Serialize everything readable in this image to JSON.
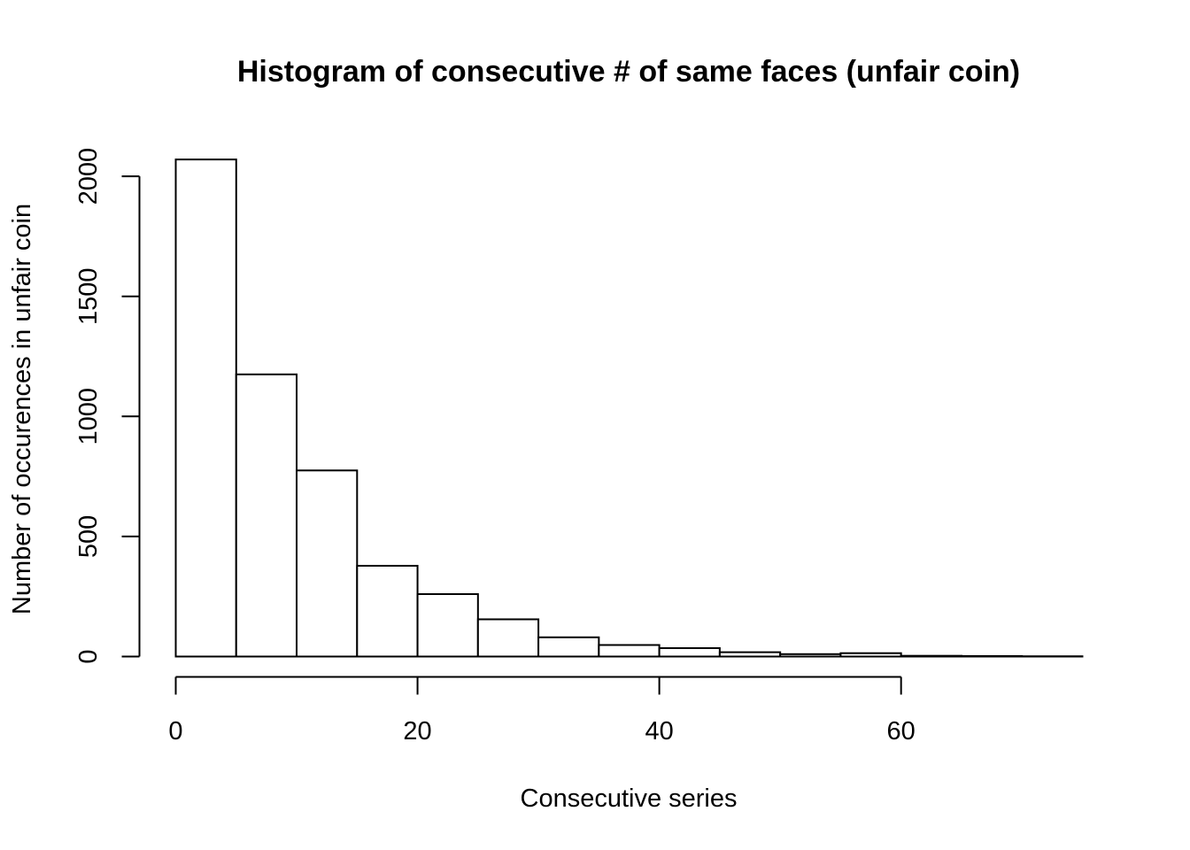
{
  "chart_data": {
    "type": "bar",
    "title": "Histogram of consecutive # of same faces (unfair coin)",
    "xlabel": "Consecutive series",
    "ylabel": "Number of occurences in unfair coin",
    "bins": [
      {
        "x0": 0,
        "x1": 5,
        "count": 2070
      },
      {
        "x0": 5,
        "x1": 10,
        "count": 1175
      },
      {
        "x0": 10,
        "x1": 15,
        "count": 775
      },
      {
        "x0": 15,
        "x1": 20,
        "count": 378
      },
      {
        "x0": 20,
        "x1": 25,
        "count": 260
      },
      {
        "x0": 25,
        "x1": 30,
        "count": 155
      },
      {
        "x0": 30,
        "x1": 35,
        "count": 80
      },
      {
        "x0": 35,
        "x1": 40,
        "count": 48
      },
      {
        "x0": 40,
        "x1": 45,
        "count": 35
      },
      {
        "x0": 45,
        "x1": 50,
        "count": 18
      },
      {
        "x0": 50,
        "x1": 55,
        "count": 10
      },
      {
        "x0": 55,
        "x1": 60,
        "count": 14
      },
      {
        "x0": 60,
        "x1": 65,
        "count": 3
      },
      {
        "x0": 65,
        "x1": 70,
        "count": 2
      },
      {
        "x0": 70,
        "x1": 75,
        "count": 1
      }
    ],
    "xlim": [
      0,
      75
    ],
    "ylim": [
      0,
      2070
    ],
    "x_ticks": [
      0,
      20,
      40,
      60
    ],
    "y_ticks": [
      0,
      500,
      1000,
      1500,
      2000
    ],
    "grid": false,
    "bar_fill": "#ffffff",
    "bar_stroke": "#000000"
  }
}
